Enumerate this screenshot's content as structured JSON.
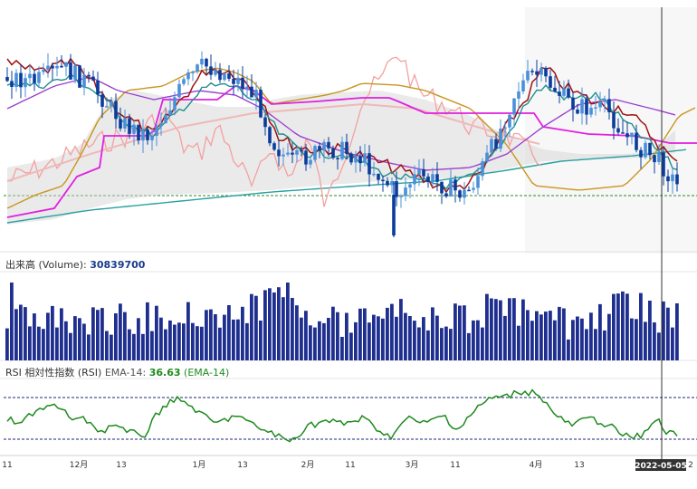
{
  "chart_data": {
    "type": "candlestick",
    "volume_panel": {
      "label": "出来高 (Volume):",
      "value": "30839700",
      "color": "#1f2f8f"
    },
    "rsi_panel": {
      "label": "RSI 相対性指数 (RSI)",
      "ema_label": "EMA-14:",
      "value": "36.63",
      "ema_suffix": "(EMA-14)",
      "color": "#1e8a1e",
      "upper_band": 70,
      "lower_band": 30
    },
    "x_tick_labels": [
      "11",
      "12月",
      "13",
      "1月",
      "13",
      "2月",
      "11",
      "3月",
      "11",
      "4月",
      "13",
      "2"
    ],
    "cursor_date": "2022-05-05",
    "series_colors": {
      "candle_up": "#4a90d9",
      "candle_down": "#0a3c9c",
      "short_ma": "#a01010",
      "mid_ma": "#1f8f8f",
      "conversion": "#e020e0",
      "lagging": "#f4a0a0",
      "band": "#c8961e",
      "long_ma": "#2aa0a0",
      "ma_purple": "#9b40d0",
      "kumo_fill": "#d0d0d0",
      "support_line": "#2a8a2a"
    }
  }
}
